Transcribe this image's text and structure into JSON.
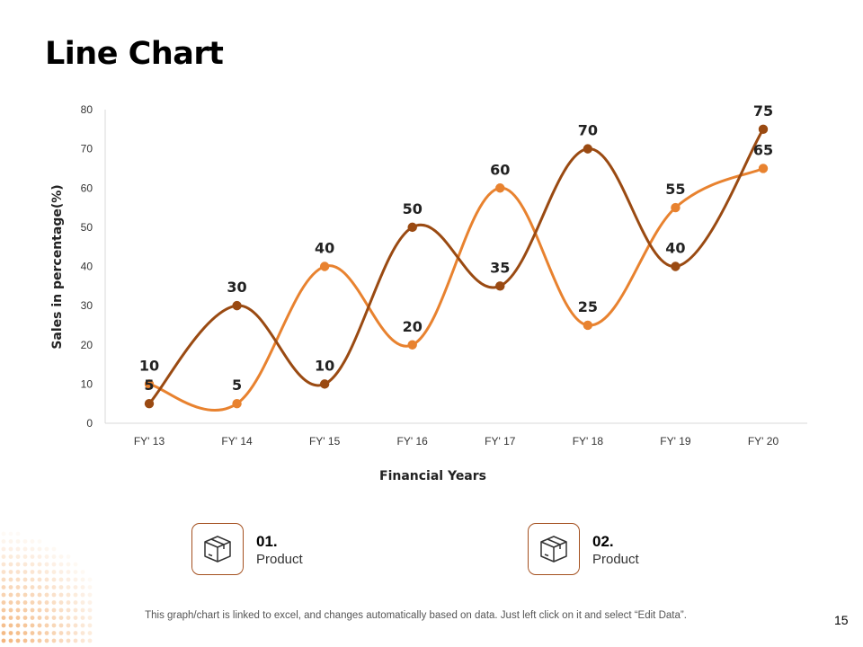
{
  "page": {
    "title": "Line Chart",
    "footer_note": "This graph/chart is linked to excel, and changes automatically based on data. Just left click on it and select “Edit Data”.",
    "page_number": "15"
  },
  "legend": [
    {
      "number": "01.",
      "label": "Product",
      "icon": "box-icon"
    },
    {
      "number": "02.",
      "label": "Product",
      "icon": "box-icon"
    }
  ],
  "colors": {
    "series_1": "#e8822f",
    "series_2": "#9a4a12",
    "axis": "#d9d9d9",
    "legend_border": "#a4501f"
  },
  "chart_data": {
    "type": "line",
    "title": "Line Chart",
    "xlabel": "Financial Years",
    "ylabel": "Sales in percentage(%)",
    "categories": [
      "FY' 13",
      "FY' 14",
      "FY' 15",
      "FY' 16",
      "FY' 17",
      "FY' 18",
      "FY' 19",
      "FY' 20"
    ],
    "ylim": [
      0,
      80
    ],
    "yticks": [
      0,
      10,
      20,
      30,
      40,
      50,
      60,
      70,
      80
    ],
    "grid": false,
    "smooth": true,
    "series": [
      {
        "name": "Product 01",
        "values": [
          10,
          5,
          40,
          20,
          60,
          25,
          55,
          65
        ]
      },
      {
        "name": "Product 02",
        "values": [
          5,
          30,
          10,
          50,
          35,
          70,
          40,
          75
        ]
      }
    ]
  }
}
